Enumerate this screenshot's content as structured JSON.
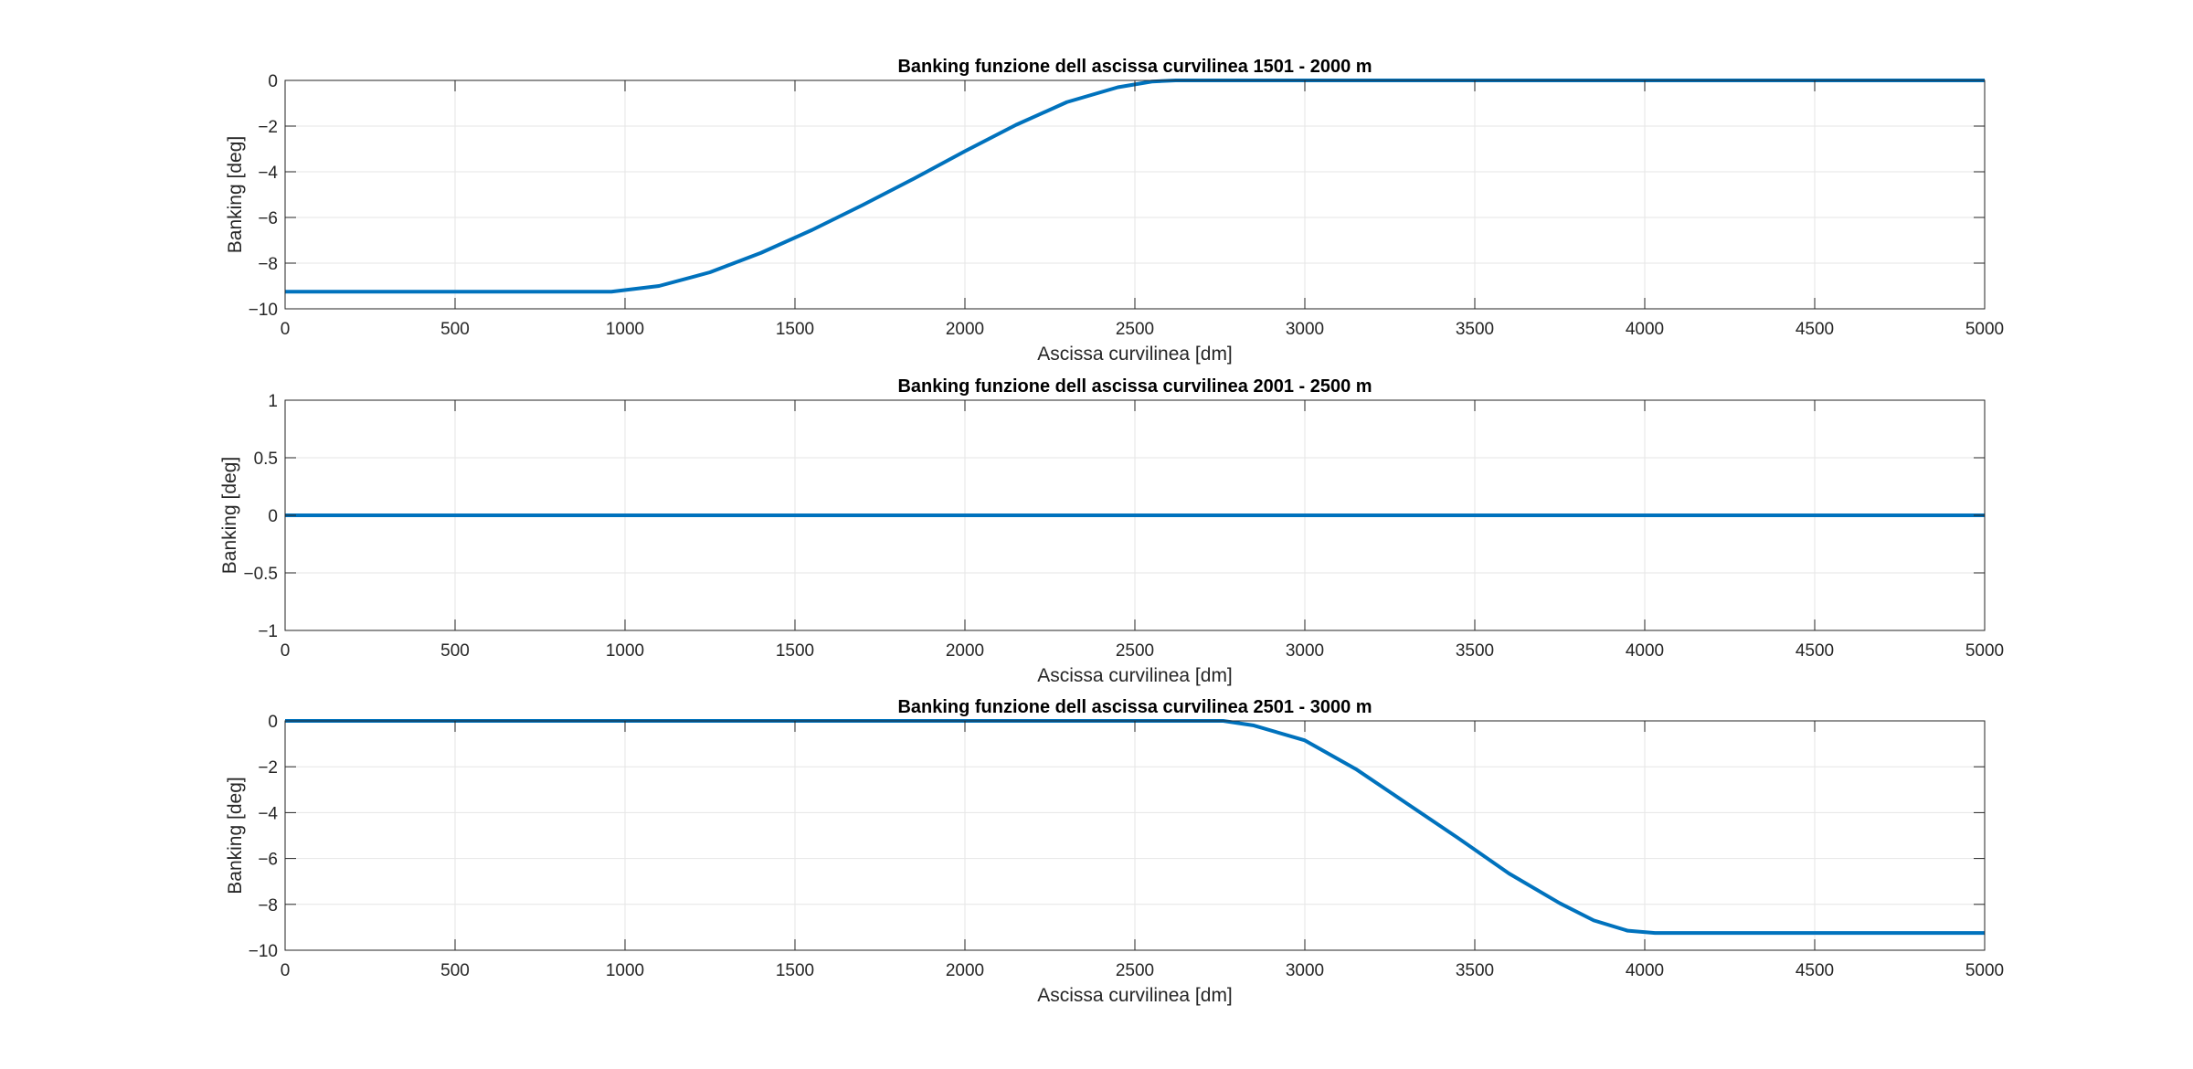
{
  "chart_data": [
    {
      "type": "line",
      "title": "Banking funzione dell ascissa curvilinea 1501 - 2000 m",
      "xlabel": "Ascissa curvilinea [dm]",
      "ylabel": "Banking [deg]",
      "xlim": [
        0,
        5000
      ],
      "ylim": [
        -10,
        0
      ],
      "xticks": [
        0,
        500,
        1000,
        1500,
        2000,
        2500,
        3000,
        3500,
        4000,
        4500,
        5000
      ],
      "yticks": [
        0,
        -2,
        -4,
        -6,
        -8,
        -10
      ],
      "grid": true,
      "series": [
        {
          "color": "#0072BD",
          "x": [
            0,
            960,
            1100,
            1250,
            1400,
            1550,
            1700,
            1850,
            2000,
            2150,
            2300,
            2450,
            2550,
            2620,
            3500,
            5000
          ],
          "y": [
            -9.25,
            -9.25,
            -9.0,
            -8.4,
            -7.55,
            -6.55,
            -5.45,
            -4.3,
            -3.1,
            -1.95,
            -0.95,
            -0.3,
            -0.05,
            0,
            0,
            0
          ]
        }
      ]
    },
    {
      "type": "line",
      "title": "Banking funzione dell ascissa curvilinea 2001 - 2500 m",
      "xlabel": "Ascissa curvilinea [dm]",
      "ylabel": "Banking [deg]",
      "xlim": [
        0,
        5000
      ],
      "ylim": [
        -1,
        1
      ],
      "xticks": [
        0,
        500,
        1000,
        1500,
        2000,
        2500,
        3000,
        3500,
        4000,
        4500,
        5000
      ],
      "yticks": [
        1,
        0.5,
        0,
        -0.5,
        -1
      ],
      "grid": true,
      "series": [
        {
          "color": "#0072BD",
          "x": [
            0,
            5000
          ],
          "y": [
            0,
            0
          ]
        }
      ]
    },
    {
      "type": "line",
      "title": "Banking funzione dell ascissa curvilinea 2501 - 3000 m",
      "xlabel": "Ascissa curvilinea [dm]",
      "ylabel": "Banking [deg]",
      "xlim": [
        0,
        5000
      ],
      "ylim": [
        -10,
        0
      ],
      "xticks": [
        0,
        500,
        1000,
        1500,
        2000,
        2500,
        3000,
        3500,
        4000,
        4500,
        5000
      ],
      "yticks": [
        0,
        -2,
        -4,
        -6,
        -8,
        -10
      ],
      "grid": true,
      "series": [
        {
          "color": "#0072BD",
          "x": [
            0,
            2760,
            2850,
            3000,
            3150,
            3300,
            3450,
            3600,
            3750,
            3850,
            3950,
            4030,
            5000
          ],
          "y": [
            0,
            0,
            -0.2,
            -0.85,
            -2.1,
            -3.6,
            -5.1,
            -6.65,
            -7.95,
            -8.7,
            -9.15,
            -9.25,
            -9.25
          ]
        }
      ]
    }
  ]
}
